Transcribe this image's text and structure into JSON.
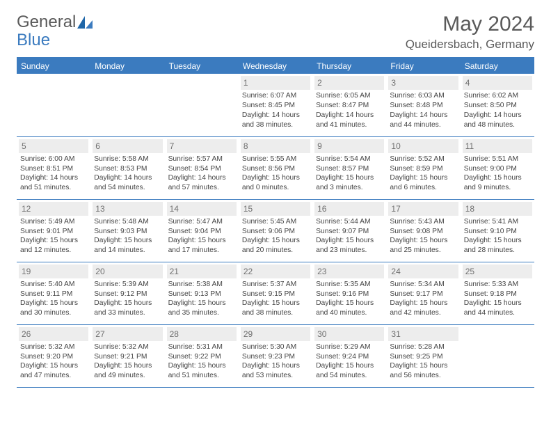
{
  "logo": {
    "text1": "General",
    "text2": "Blue",
    "icon_color": "#1e66a8"
  },
  "title": "May 2024",
  "location": "Queidersbach, Germany",
  "colors": {
    "header_bg": "#3b7bbf",
    "header_text": "#ffffff",
    "daynum_bg": "#ededed",
    "daynum_text": "#707070",
    "border": "#3b7bbf",
    "body_text": "#444444"
  },
  "weekdays": [
    "Sunday",
    "Monday",
    "Tuesday",
    "Wednesday",
    "Thursday",
    "Friday",
    "Saturday"
  ],
  "weeks": [
    [
      null,
      null,
      null,
      {
        "n": "1",
        "sr": "Sunrise: 6:07 AM",
        "ss": "Sunset: 8:45 PM",
        "d1": "Daylight: 14 hours",
        "d2": "and 38 minutes."
      },
      {
        "n": "2",
        "sr": "Sunrise: 6:05 AM",
        "ss": "Sunset: 8:47 PM",
        "d1": "Daylight: 14 hours",
        "d2": "and 41 minutes."
      },
      {
        "n": "3",
        "sr": "Sunrise: 6:03 AM",
        "ss": "Sunset: 8:48 PM",
        "d1": "Daylight: 14 hours",
        "d2": "and 44 minutes."
      },
      {
        "n": "4",
        "sr": "Sunrise: 6:02 AM",
        "ss": "Sunset: 8:50 PM",
        "d1": "Daylight: 14 hours",
        "d2": "and 48 minutes."
      }
    ],
    [
      {
        "n": "5",
        "sr": "Sunrise: 6:00 AM",
        "ss": "Sunset: 8:51 PM",
        "d1": "Daylight: 14 hours",
        "d2": "and 51 minutes."
      },
      {
        "n": "6",
        "sr": "Sunrise: 5:58 AM",
        "ss": "Sunset: 8:53 PM",
        "d1": "Daylight: 14 hours",
        "d2": "and 54 minutes."
      },
      {
        "n": "7",
        "sr": "Sunrise: 5:57 AM",
        "ss": "Sunset: 8:54 PM",
        "d1": "Daylight: 14 hours",
        "d2": "and 57 minutes."
      },
      {
        "n": "8",
        "sr": "Sunrise: 5:55 AM",
        "ss": "Sunset: 8:56 PM",
        "d1": "Daylight: 15 hours",
        "d2": "and 0 minutes."
      },
      {
        "n": "9",
        "sr": "Sunrise: 5:54 AM",
        "ss": "Sunset: 8:57 PM",
        "d1": "Daylight: 15 hours",
        "d2": "and 3 minutes."
      },
      {
        "n": "10",
        "sr": "Sunrise: 5:52 AM",
        "ss": "Sunset: 8:59 PM",
        "d1": "Daylight: 15 hours",
        "d2": "and 6 minutes."
      },
      {
        "n": "11",
        "sr": "Sunrise: 5:51 AM",
        "ss": "Sunset: 9:00 PM",
        "d1": "Daylight: 15 hours",
        "d2": "and 9 minutes."
      }
    ],
    [
      {
        "n": "12",
        "sr": "Sunrise: 5:49 AM",
        "ss": "Sunset: 9:01 PM",
        "d1": "Daylight: 15 hours",
        "d2": "and 12 minutes."
      },
      {
        "n": "13",
        "sr": "Sunrise: 5:48 AM",
        "ss": "Sunset: 9:03 PM",
        "d1": "Daylight: 15 hours",
        "d2": "and 14 minutes."
      },
      {
        "n": "14",
        "sr": "Sunrise: 5:47 AM",
        "ss": "Sunset: 9:04 PM",
        "d1": "Daylight: 15 hours",
        "d2": "and 17 minutes."
      },
      {
        "n": "15",
        "sr": "Sunrise: 5:45 AM",
        "ss": "Sunset: 9:06 PM",
        "d1": "Daylight: 15 hours",
        "d2": "and 20 minutes."
      },
      {
        "n": "16",
        "sr": "Sunrise: 5:44 AM",
        "ss": "Sunset: 9:07 PM",
        "d1": "Daylight: 15 hours",
        "d2": "and 23 minutes."
      },
      {
        "n": "17",
        "sr": "Sunrise: 5:43 AM",
        "ss": "Sunset: 9:08 PM",
        "d1": "Daylight: 15 hours",
        "d2": "and 25 minutes."
      },
      {
        "n": "18",
        "sr": "Sunrise: 5:41 AM",
        "ss": "Sunset: 9:10 PM",
        "d1": "Daylight: 15 hours",
        "d2": "and 28 minutes."
      }
    ],
    [
      {
        "n": "19",
        "sr": "Sunrise: 5:40 AM",
        "ss": "Sunset: 9:11 PM",
        "d1": "Daylight: 15 hours",
        "d2": "and 30 minutes."
      },
      {
        "n": "20",
        "sr": "Sunrise: 5:39 AM",
        "ss": "Sunset: 9:12 PM",
        "d1": "Daylight: 15 hours",
        "d2": "and 33 minutes."
      },
      {
        "n": "21",
        "sr": "Sunrise: 5:38 AM",
        "ss": "Sunset: 9:13 PM",
        "d1": "Daylight: 15 hours",
        "d2": "and 35 minutes."
      },
      {
        "n": "22",
        "sr": "Sunrise: 5:37 AM",
        "ss": "Sunset: 9:15 PM",
        "d1": "Daylight: 15 hours",
        "d2": "and 38 minutes."
      },
      {
        "n": "23",
        "sr": "Sunrise: 5:35 AM",
        "ss": "Sunset: 9:16 PM",
        "d1": "Daylight: 15 hours",
        "d2": "and 40 minutes."
      },
      {
        "n": "24",
        "sr": "Sunrise: 5:34 AM",
        "ss": "Sunset: 9:17 PM",
        "d1": "Daylight: 15 hours",
        "d2": "and 42 minutes."
      },
      {
        "n": "25",
        "sr": "Sunrise: 5:33 AM",
        "ss": "Sunset: 9:18 PM",
        "d1": "Daylight: 15 hours",
        "d2": "and 44 minutes."
      }
    ],
    [
      {
        "n": "26",
        "sr": "Sunrise: 5:32 AM",
        "ss": "Sunset: 9:20 PM",
        "d1": "Daylight: 15 hours",
        "d2": "and 47 minutes."
      },
      {
        "n": "27",
        "sr": "Sunrise: 5:32 AM",
        "ss": "Sunset: 9:21 PM",
        "d1": "Daylight: 15 hours",
        "d2": "and 49 minutes."
      },
      {
        "n": "28",
        "sr": "Sunrise: 5:31 AM",
        "ss": "Sunset: 9:22 PM",
        "d1": "Daylight: 15 hours",
        "d2": "and 51 minutes."
      },
      {
        "n": "29",
        "sr": "Sunrise: 5:30 AM",
        "ss": "Sunset: 9:23 PM",
        "d1": "Daylight: 15 hours",
        "d2": "and 53 minutes."
      },
      {
        "n": "30",
        "sr": "Sunrise: 5:29 AM",
        "ss": "Sunset: 9:24 PM",
        "d1": "Daylight: 15 hours",
        "d2": "and 54 minutes."
      },
      {
        "n": "31",
        "sr": "Sunrise: 5:28 AM",
        "ss": "Sunset: 9:25 PM",
        "d1": "Daylight: 15 hours",
        "d2": "and 56 minutes."
      },
      null
    ]
  ]
}
